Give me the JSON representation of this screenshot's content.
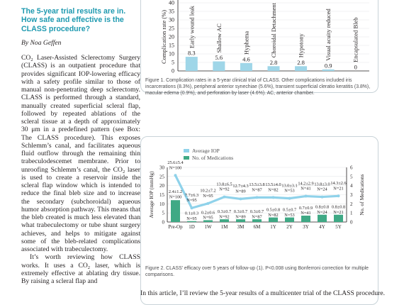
{
  "article": {
    "headline": "The 5-year trial results are in. How safe and effective is the CLASS procedure?",
    "byline": "By Noa Geffen",
    "para1": [
      {
        "t": "CO"
      },
      {
        "sub": "2"
      },
      {
        "t": " Laser-Assisted Sclerectomy Surgery (CLASS) is an outpatient procedure that provides significant IOP-lowering efficacy with a safety profile similar to those of manual non-penetrating deep sclerectomy. CLASS is performed through a standard, manually created superficial scleral flap, followed by repeated ablations of the scleral tissue at a depth of approximately 30 μm in a predefined pattern (see Box: The CLASS procedure). This exposes Schlemm’s canal, and facilitates aqueous fluid outflow through the remaining thin trabeculodescemet membrane. Prior to unroofing Schlemm’s canal, the CO"
      },
      {
        "sub": "2"
      },
      {
        "t": " laser is used to create a reservoir inside the scleral flap window which is intended to reduce the final bleb size and to increase the secondary (subchoroidal) aqueous humor absorption pathway. This means that the bleb created is much less elevated than what trabeculectomy or tube shunt surgery achieves, and helps to mitigate against some of the bleb-related complications associated with trabeculectomy."
      }
    ],
    "para2": [
      {
        "t": "It’s worth reviewing how CLASS works. It uses a CO"
      },
      {
        "sub": "2"
      },
      {
        "t": " laser, which is extremely effective at ablating dry tissue. By raising a scleral flap and"
      }
    ],
    "bottom_text": "In this article, I’ll review the 5-year results of a multicenter trial of the CLASS procedure."
  },
  "figure1": {
    "caption": "Figure 1. Complication rates in a 5-year clinical trial of CLASS. Other complications included iris incarcerations (8.3%), peripheral anterior synechiae (5.6%), transient superficial cleratio keratitis (3.8%), macular edema (0.9%), and perforation by laser (4.6%). AC, anterior chamber.",
    "chart_data": {
      "type": "bar",
      "ylabel": "Complication rate (%)",
      "yticks": [
        0,
        5,
        10,
        15,
        20,
        25,
        30,
        35,
        40
      ],
      "ylim": [
        0,
        40
      ],
      "categories": [
        "Early wound leak",
        "Shallow AC",
        "Hyphema",
        "Choroidal Detachment",
        "Hypotony",
        "Visual acuity reduced",
        "Encapsulated Bleb"
      ],
      "values": [
        8.3,
        5.6,
        4.6,
        2.8,
        2.8,
        0.9,
        0
      ],
      "value_labels": [
        "8.3",
        "5.6",
        "4.6",
        "2.8",
        "2.8",
        "0.9",
        "0"
      ],
      "bar_color": "#9fd6e8"
    }
  },
  "figure2": {
    "caption": "Figure 2. CLASS’ efficacy over 5 years of follow-up (1). P<0.008 using Bonferroni correction for multiple comparisons.",
    "chart_data": {
      "type": "bar+line",
      "categories": [
        "Pre-Op",
        "1D",
        "1W",
        "1M",
        "3M",
        "6M",
        "1Y",
        "2Y",
        "3Y",
        "4Y",
        "5Y"
      ],
      "left_axis": {
        "label": "Average IOP (mmHg)",
        "ticks": [
          0,
          5,
          10,
          15,
          20,
          25,
          30
        ],
        "ylim": [
          0,
          30
        ]
      },
      "right_axis": {
        "label": "No. of Medications",
        "ticks": [
          0,
          1,
          2,
          3,
          4,
          5,
          6
        ],
        "ylim": [
          0,
          6
        ]
      },
      "legend": [
        "Average IOP",
        "No. of Medications"
      ],
      "iop": [
        25.6,
        7.7,
        10.2,
        13.8,
        12.7,
        13.5,
        13.5,
        13.0,
        14.2,
        13.8,
        14.3
      ],
      "iop_labels": [
        "25.6±5.4\nN=100",
        "7.7±6.3\nN=95",
        "10.2±7.2\nN=95",
        "13.8±6.5\nN=92",
        "12.7±4.3\nN=89",
        "13.5±3.8\nN=87",
        "13.5±4.0\nN=82",
        "13.0±3.1\nN=53",
        "14.2±2.9\nN=41",
        "13.8±3.0\nN=24",
        "14.3±2.6\nN=21"
      ],
      "medications": [
        2.4,
        0.1,
        0.2,
        0.3,
        0.3,
        0.3,
        0.5,
        0.5,
        0.7,
        0.8,
        0.8
      ],
      "med_labels": [
        "2.4±1.2\nN=100",
        "0.1±0.3\nN=95",
        "0.2±0.6\nN=95",
        "0.3±0.7\nN=92",
        "0.3±0.7\nN=89",
        "0.3±0.7\nN=87",
        "0.5±0.8\nN=82",
        "0.5±0.7\nN=53",
        "0.7±0.9\nN=41",
        "0.8±0.8\nN=24",
        "0.8±0.8\nN=21"
      ],
      "line_color": "#8fd2ea",
      "bar_color": "#3fa985"
    }
  }
}
